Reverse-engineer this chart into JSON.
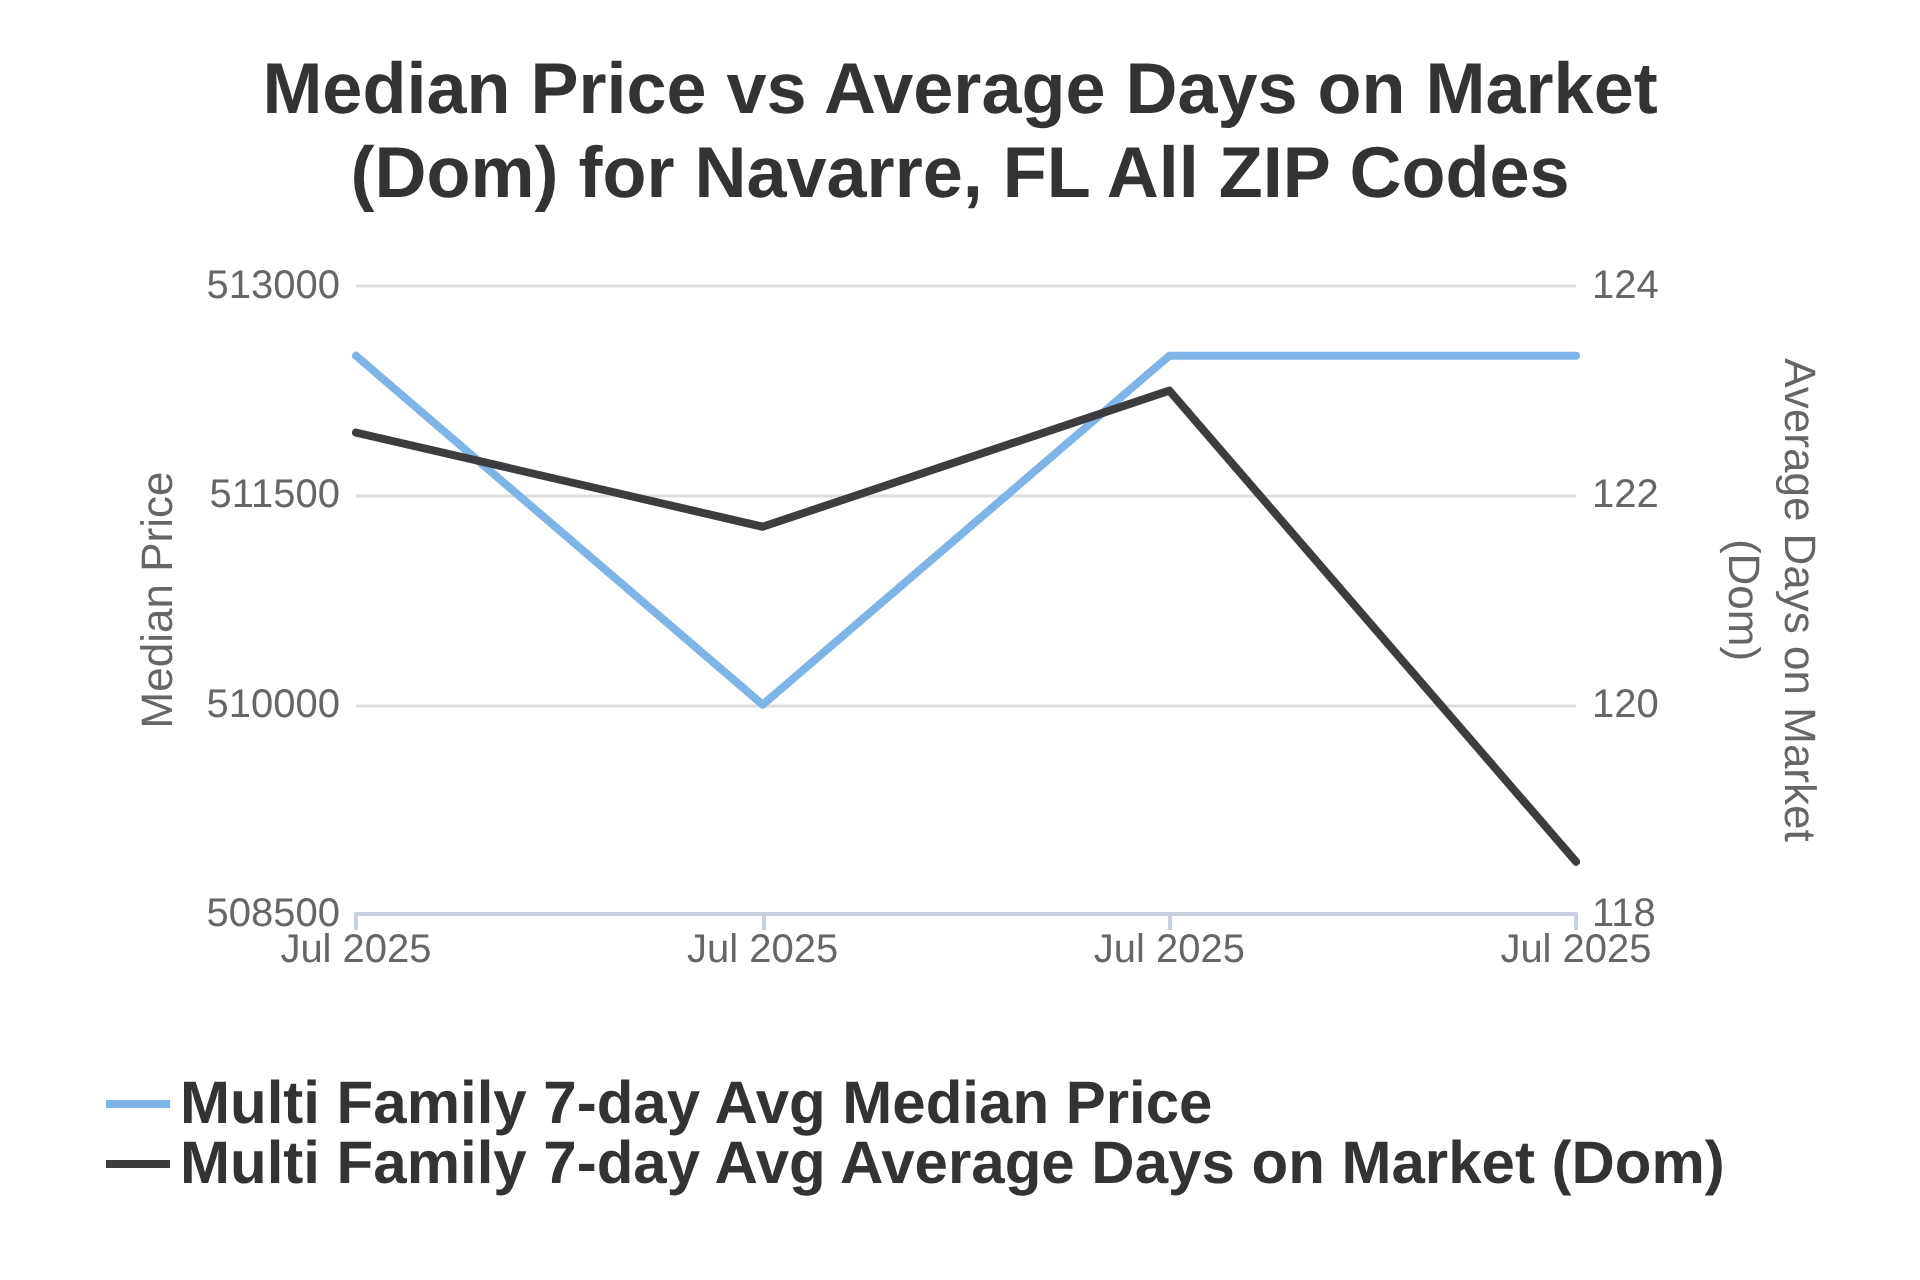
{
  "chart_data": {
    "type": "line",
    "title": "Median Price vs Average Days on Market\n(Dom) for Navarre, FL All ZIP Codes",
    "ylabel": "Median Price",
    "y2label": "Average Days on Market\n(Dom)",
    "categories": [
      "Jul 2025",
      "Jul 2025",
      "Jul 2025",
      "Jul 2025"
    ],
    "series": [
      {
        "name": "Multi Family 7-day Avg Median Price",
        "color": "#7eb4e8",
        "values": [
          512500,
          510000,
          512500,
          512500
        ]
      },
      {
        "name": "Multi Family 7-day Avg Average Days on Market (Dom)",
        "color": "#3d3d40",
        "values": [
          122.6,
          121.7,
          123.0,
          118.5
        ],
        "axis": "y2"
      }
    ],
    "ylim": [
      508500,
      513000
    ],
    "yticks": [
      508500,
      511500,
      510000,
      513000
    ],
    "y2lim": [
      118,
      124
    ],
    "y2ticks": [
      118,
      120,
      122,
      124
    ],
    "grid": "y",
    "legend": "bottom",
    "marker": "none",
    "line_style": "solid"
  }
}
